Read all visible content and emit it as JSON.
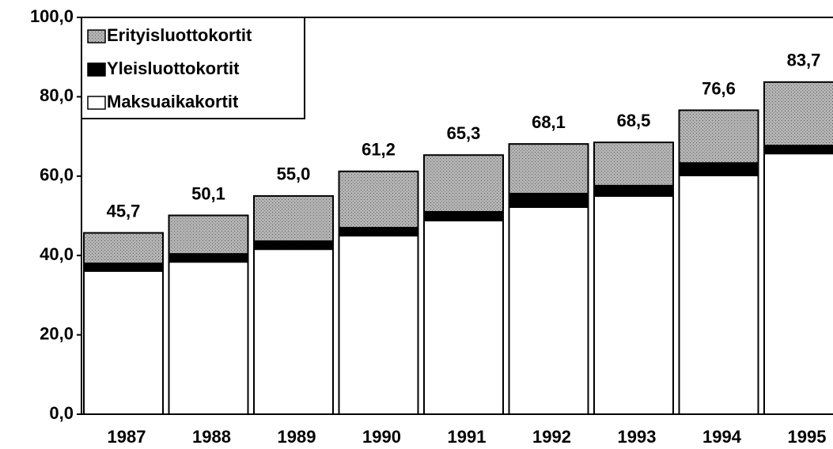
{
  "chart_data": {
    "type": "stacked_bar",
    "categories": [
      "1987",
      "1988",
      "1989",
      "1990",
      "1991",
      "1992",
      "1993",
      "1994",
      "1995"
    ],
    "series": [
      {
        "name": "Maksuaikakortit",
        "color": "#ffffff",
        "values": [
          36.1,
          38.4,
          41.6,
          45.0,
          48.8,
          52.2,
          55.0,
          60.2,
          65.7
        ]
      },
      {
        "name": "Yleisluottokortit",
        "color": "#000000",
        "values": [
          1.9,
          2.0,
          2.0,
          2.0,
          2.2,
          3.4,
          2.6,
          3.1,
          2.0
        ]
      },
      {
        "name": "Erityisluottokortit",
        "color": "#a9a9a9",
        "values": [
          7.7,
          9.7,
          11.4,
          14.2,
          14.3,
          12.5,
          10.9,
          13.3,
          16.0
        ]
      }
    ],
    "totals": [
      45.7,
      50.1,
      55.0,
      61.2,
      65.3,
      68.1,
      68.5,
      76.6,
      83.7
    ],
    "total_labels": [
      "45,7",
      "50,1",
      "55,0",
      "61,2",
      "65,3",
      "68,1",
      "68,5",
      "76,6",
      "83,7"
    ],
    "ylim": [
      0,
      100
    ],
    "yticks": [
      {
        "value": 0,
        "label": "0,0"
      },
      {
        "value": 20,
        "label": "20,0"
      },
      {
        "value": 40,
        "label": "40,0"
      },
      {
        "value": 60,
        "label": "60,0"
      },
      {
        "value": 80,
        "label": "80,0"
      },
      {
        "value": 100,
        "label": "100,0"
      }
    ],
    "legend": "top-left",
    "grid": false
  }
}
